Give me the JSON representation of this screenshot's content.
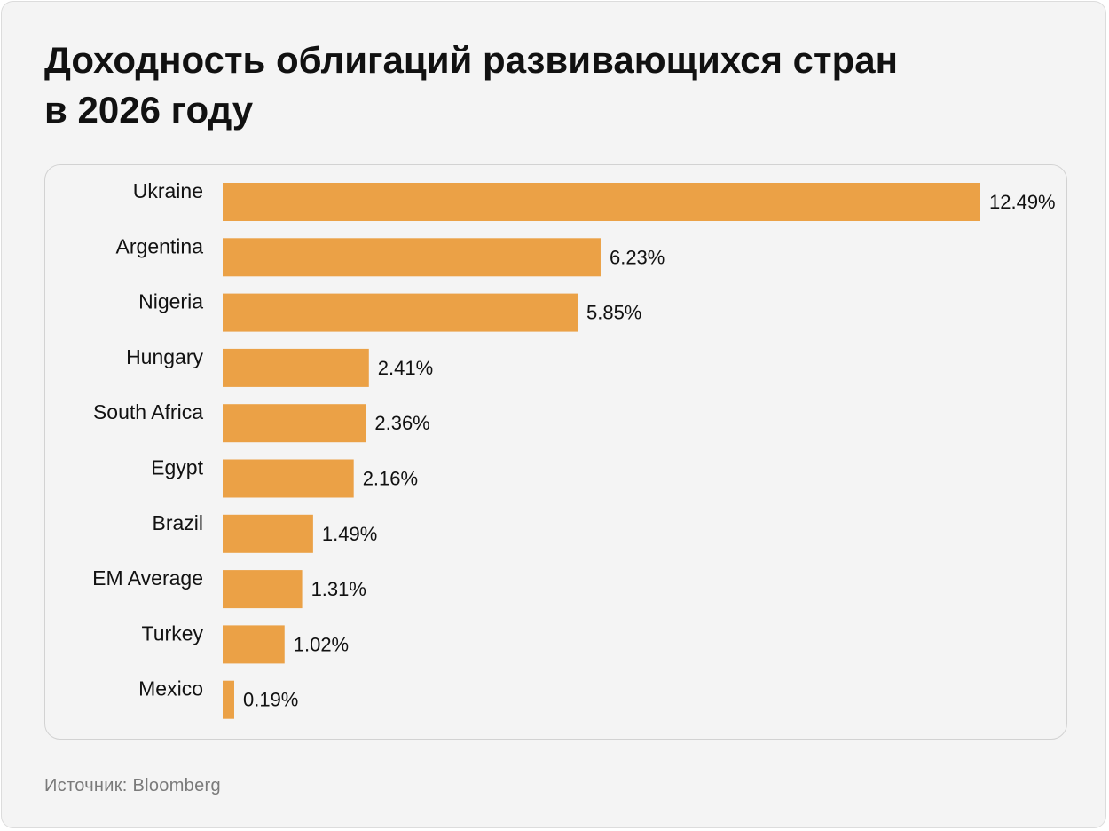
{
  "title_line1": "Доходность облигаций развивающихся стран",
  "title_line2": "в 2026 году",
  "source": "Источник: Bloomberg",
  "colors": {
    "bar": "#eba146",
    "text": "#111111",
    "muted": "#7a7a7a"
  },
  "chart_data": {
    "type": "bar",
    "orientation": "horizontal",
    "categories": [
      "Ukraine",
      "Argentina",
      "Nigeria",
      "Hungary",
      "South Africa",
      "Egypt",
      "Brazil",
      "EM Average",
      "Turkey",
      "Mexico"
    ],
    "values": [
      12.49,
      6.23,
      5.85,
      2.41,
      2.36,
      2.16,
      1.49,
      1.31,
      1.02,
      0.19
    ],
    "value_labels": [
      "12.49%",
      "6.23%",
      "5.85%",
      "2.41%",
      "2.36%",
      "2.16%",
      "1.49%",
      "1.31%",
      "1.02%",
      "0.19%"
    ],
    "xlabel": "",
    "ylabel": "",
    "xlim": [
      0,
      12.49
    ],
    "grid": false,
    "legend": "none"
  }
}
